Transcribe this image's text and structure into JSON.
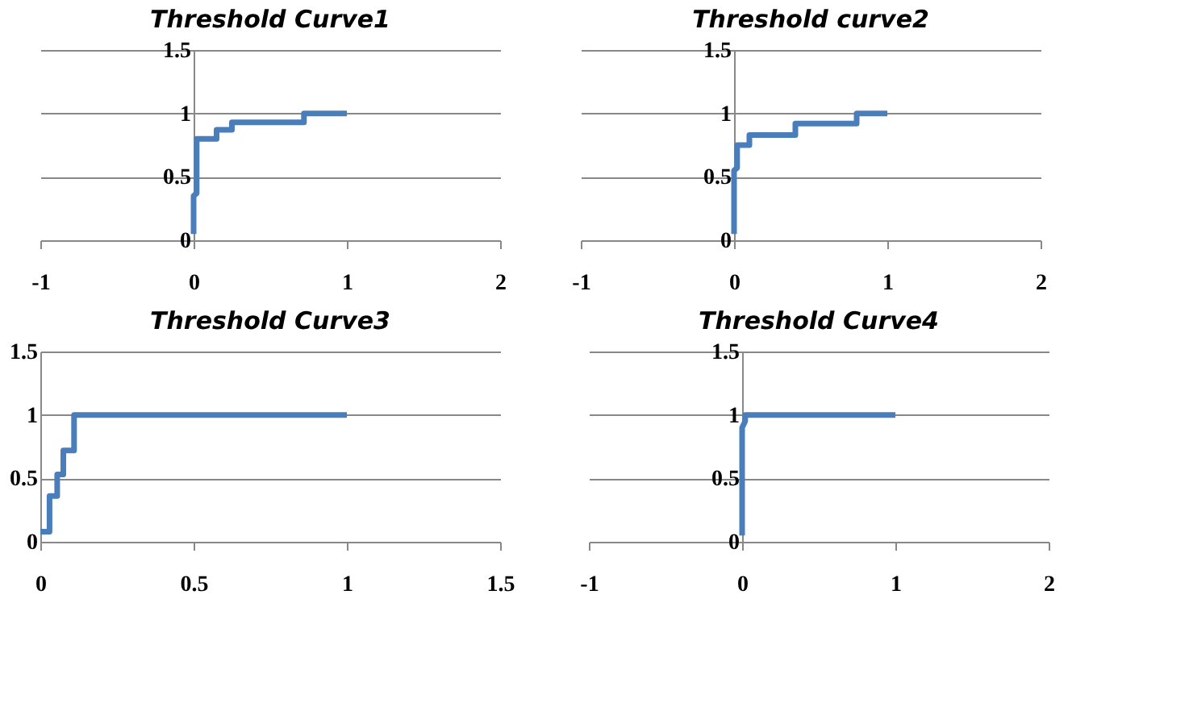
{
  "chart_data": [
    {
      "type": "line",
      "title": "Threshold Curve1",
      "xlim": [
        -1,
        2
      ],
      "xticks": [
        -1,
        0,
        1,
        2
      ],
      "ylim": [
        0,
        1.5
      ],
      "yticks": [
        0,
        0.5,
        1,
        1.5
      ],
      "grid": "y",
      "marker": "none",
      "line_style": "solid",
      "series": [
        {
          "color": "#4a7ebb",
          "x": [
            0,
            0,
            0.02,
            0.02,
            0.15,
            0.15,
            0.25,
            0.25,
            0.72,
            0.72,
            1
          ],
          "values": [
            0.05,
            0.35,
            0.37,
            0.8,
            0.8,
            0.87,
            0.87,
            0.93,
            0.93,
            1,
            1
          ]
        }
      ]
    },
    {
      "type": "line",
      "title": "Threshold curve2",
      "xlim": [
        -1,
        2
      ],
      "xticks": [
        -1,
        0,
        1,
        2
      ],
      "ylim": [
        0,
        1.5
      ],
      "yticks": [
        0,
        0.5,
        1,
        1.5
      ],
      "grid": "y",
      "marker": "none",
      "line_style": "solid",
      "series": [
        {
          "color": "#4a7ebb",
          "x": [
            0,
            0,
            0.02,
            0.02,
            0.1,
            0.1,
            0.4,
            0.4,
            0.8,
            0.8,
            1
          ],
          "values": [
            0.05,
            0.55,
            0.57,
            0.75,
            0.75,
            0.83,
            0.83,
            0.92,
            0.92,
            1,
            1
          ]
        }
      ]
    },
    {
      "type": "line",
      "title": "Threshold Curve3",
      "xlim": [
        0,
        1.5
      ],
      "xticks": [
        0,
        0.5,
        1,
        1.5
      ],
      "ylim": [
        0,
        1.5
      ],
      "yticks": [
        0,
        0.5,
        1,
        1.5
      ],
      "grid": "y",
      "marker": "none",
      "line_style": "solid",
      "series": [
        {
          "color": "#4a7ebb",
          "x": [
            0,
            0.03,
            0.03,
            0.055,
            0.055,
            0.075,
            0.075,
            0.11,
            0.11,
            1
          ],
          "values": [
            0.08,
            0.08,
            0.36,
            0.36,
            0.53,
            0.53,
            0.72,
            0.72,
            1,
            1
          ]
        }
      ]
    },
    {
      "type": "line",
      "title": "Threshold Curve4",
      "xlim": [
        -1,
        2
      ],
      "xticks": [
        -1,
        0,
        1,
        2
      ],
      "ylim": [
        0,
        1.5
      ],
      "yticks": [
        0,
        0.5,
        1,
        1.5
      ],
      "grid": "y",
      "marker": "none",
      "line_style": "solid",
      "series": [
        {
          "color": "#4a7ebb",
          "x": [
            0,
            0,
            0.02,
            0.02,
            1
          ],
          "values": [
            0.05,
            0.9,
            0.95,
            1,
            1
          ]
        }
      ]
    }
  ]
}
